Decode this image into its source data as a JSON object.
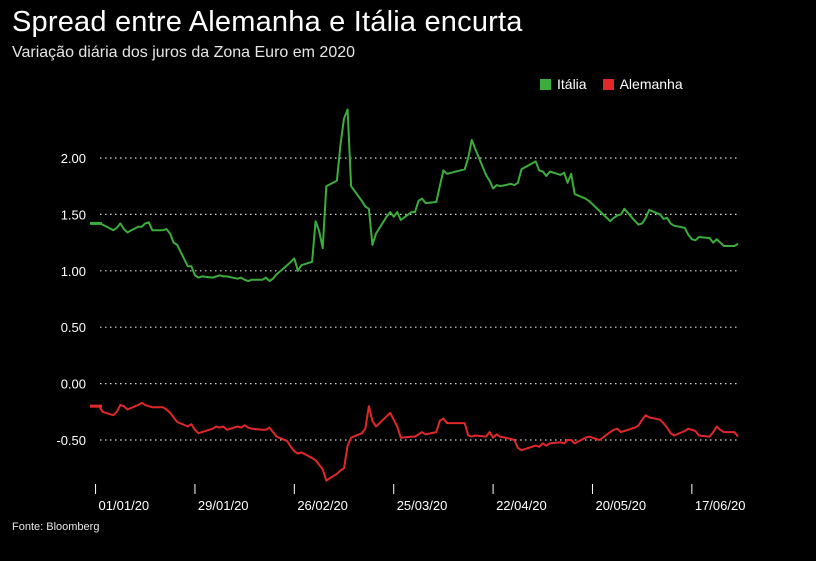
{
  "title": "Spread entre Alemanha e Itália encurta",
  "subtitle": "Variação diária dos juros da Zona Euro em 2020",
  "source": "Fonte: Bloomberg",
  "legend": [
    {
      "label": "Itália",
      "color": "#3cad3c"
    },
    {
      "label": "Alemanha",
      "color": "#e02828"
    }
  ],
  "chart_data": {
    "type": "line",
    "ylim": [
      -0.9,
      2.55
    ],
    "y_ticks": [
      "2.00",
      "1.50",
      "1.00",
      "0.50",
      "0.00",
      "-0.50"
    ],
    "x_ticks": [
      "01/01/20",
      "29/01/20",
      "26/02/20",
      "25/03/20",
      "22/04/20",
      "20/05/20",
      "17/06/20"
    ],
    "x_range": [
      "2019-12-31",
      "2020-06-30"
    ],
    "grid": true,
    "legend_position": "top-right",
    "series": [
      {
        "name": "Itália",
        "color": "#3cad3c",
        "points": [
          [
            "2020-01-02",
            1.42
          ],
          [
            "2020-01-03",
            1.41
          ],
          [
            "2020-01-06",
            1.36
          ],
          [
            "2020-01-07",
            1.38
          ],
          [
            "2020-01-08",
            1.42
          ],
          [
            "2020-01-09",
            1.37
          ],
          [
            "2020-01-10",
            1.34
          ],
          [
            "2020-01-13",
            1.39
          ],
          [
            "2020-01-14",
            1.39
          ],
          [
            "2020-01-15",
            1.42
          ],
          [
            "2020-01-16",
            1.43
          ],
          [
            "2020-01-17",
            1.36
          ],
          [
            "2020-01-20",
            1.36
          ],
          [
            "2020-01-21",
            1.37
          ],
          [
            "2020-01-22",
            1.33
          ],
          [
            "2020-01-23",
            1.25
          ],
          [
            "2020-01-24",
            1.23
          ],
          [
            "2020-01-27",
            1.04
          ],
          [
            "2020-01-28",
            1.04
          ],
          [
            "2020-01-29",
            0.96
          ],
          [
            "2020-01-30",
            0.94
          ],
          [
            "2020-01-31",
            0.95
          ],
          [
            "2020-02-03",
            0.94
          ],
          [
            "2020-02-04",
            0.95
          ],
          [
            "2020-02-05",
            0.96
          ],
          [
            "2020-02-06",
            0.95
          ],
          [
            "2020-02-07",
            0.95
          ],
          [
            "2020-02-10",
            0.93
          ],
          [
            "2020-02-11",
            0.94
          ],
          [
            "2020-02-12",
            0.92
          ],
          [
            "2020-02-13",
            0.91
          ],
          [
            "2020-02-14",
            0.92
          ],
          [
            "2020-02-17",
            0.92
          ],
          [
            "2020-02-18",
            0.94
          ],
          [
            "2020-02-19",
            0.91
          ],
          [
            "2020-02-20",
            0.93
          ],
          [
            "2020-02-21",
            0.97
          ],
          [
            "2020-02-24",
            1.05
          ],
          [
            "2020-02-25",
            1.08
          ],
          [
            "2020-02-26",
            1.11
          ],
          [
            "2020-02-27",
            1.0
          ],
          [
            "2020-02-28",
            1.05
          ],
          [
            "2020-03-02",
            1.08
          ],
          [
            "2020-03-03",
            1.44
          ],
          [
            "2020-03-04",
            1.35
          ],
          [
            "2020-03-05",
            1.2
          ],
          [
            "2020-03-06",
            1.75
          ],
          [
            "2020-03-09",
            1.8
          ],
          [
            "2020-03-10",
            2.12
          ],
          [
            "2020-03-11",
            2.35
          ],
          [
            "2020-03-12",
            2.43
          ],
          [
            "2020-03-13",
            1.75
          ],
          [
            "2020-03-16",
            1.62
          ],
          [
            "2020-03-17",
            1.57
          ],
          [
            "2020-03-18",
            1.55
          ],
          [
            "2020-03-19",
            1.23
          ],
          [
            "2020-03-20",
            1.33
          ],
          [
            "2020-03-23",
            1.48
          ],
          [
            "2020-03-24",
            1.52
          ],
          [
            "2020-03-25",
            1.48
          ],
          [
            "2020-03-26",
            1.52
          ],
          [
            "2020-03-27",
            1.45
          ],
          [
            "2020-03-30",
            1.52
          ],
          [
            "2020-03-31",
            1.52
          ],
          [
            "2020-04-01",
            1.62
          ],
          [
            "2020-04-02",
            1.64
          ],
          [
            "2020-04-03",
            1.6
          ],
          [
            "2020-04-06",
            1.61
          ],
          [
            "2020-04-07",
            1.75
          ],
          [
            "2020-04-08",
            1.89
          ],
          [
            "2020-04-09",
            1.86
          ],
          [
            "2020-04-14",
            1.9
          ],
          [
            "2020-04-15",
            2.0
          ],
          [
            "2020-04-16",
            2.16
          ],
          [
            "2020-04-17",
            2.08
          ],
          [
            "2020-04-20",
            1.85
          ],
          [
            "2020-04-21",
            1.8
          ],
          [
            "2020-04-22",
            1.73
          ],
          [
            "2020-04-23",
            1.76
          ],
          [
            "2020-04-24",
            1.75
          ],
          [
            "2020-04-27",
            1.77
          ],
          [
            "2020-04-28",
            1.76
          ],
          [
            "2020-04-29",
            1.78
          ],
          [
            "2020-04-30",
            1.9
          ],
          [
            "2020-05-04",
            1.97
          ],
          [
            "2020-05-05",
            1.89
          ],
          [
            "2020-05-06",
            1.88
          ],
          [
            "2020-05-07",
            1.84
          ],
          [
            "2020-05-08",
            1.88
          ],
          [
            "2020-05-11",
            1.85
          ],
          [
            "2020-05-12",
            1.87
          ],
          [
            "2020-05-13",
            1.78
          ],
          [
            "2020-05-14",
            1.86
          ],
          [
            "2020-05-15",
            1.68
          ],
          [
            "2020-05-18",
            1.64
          ],
          [
            "2020-05-19",
            1.62
          ],
          [
            "2020-05-20",
            1.59
          ],
          [
            "2020-05-21",
            1.56
          ],
          [
            "2020-05-22",
            1.53
          ],
          [
            "2020-05-25",
            1.44
          ],
          [
            "2020-05-26",
            1.47
          ],
          [
            "2020-05-27",
            1.49
          ],
          [
            "2020-05-28",
            1.5
          ],
          [
            "2020-05-29",
            1.55
          ],
          [
            "2020-06-01",
            1.44
          ],
          [
            "2020-06-02",
            1.41
          ],
          [
            "2020-06-03",
            1.42
          ],
          [
            "2020-06-04",
            1.47
          ],
          [
            "2020-06-05",
            1.54
          ],
          [
            "2020-06-08",
            1.5
          ],
          [
            "2020-06-09",
            1.46
          ],
          [
            "2020-06-10",
            1.47
          ],
          [
            "2020-06-11",
            1.42
          ],
          [
            "2020-06-12",
            1.4
          ],
          [
            "2020-06-15",
            1.38
          ],
          [
            "2020-06-16",
            1.32
          ],
          [
            "2020-06-17",
            1.28
          ],
          [
            "2020-06-18",
            1.27
          ],
          [
            "2020-06-19",
            1.3
          ],
          [
            "2020-06-22",
            1.29
          ],
          [
            "2020-06-23",
            1.25
          ],
          [
            "2020-06-24",
            1.28
          ],
          [
            "2020-06-25",
            1.25
          ],
          [
            "2020-06-26",
            1.22
          ],
          [
            "2020-06-29",
            1.22
          ],
          [
            "2020-06-30",
            1.24
          ]
        ]
      },
      {
        "name": "Alemanha",
        "color": "#e02828",
        "points": [
          [
            "2020-01-02",
            -0.2
          ],
          [
            "2020-01-03",
            -0.25
          ],
          [
            "2020-01-06",
            -0.28
          ],
          [
            "2020-01-07",
            -0.25
          ],
          [
            "2020-01-08",
            -0.19
          ],
          [
            "2020-01-09",
            -0.2
          ],
          [
            "2020-01-10",
            -0.23
          ],
          [
            "2020-01-13",
            -0.19
          ],
          [
            "2020-01-14",
            -0.17
          ],
          [
            "2020-01-15",
            -0.19
          ],
          [
            "2020-01-16",
            -0.2
          ],
          [
            "2020-01-17",
            -0.21
          ],
          [
            "2020-01-20",
            -0.21
          ],
          [
            "2020-01-21",
            -0.23
          ],
          [
            "2020-01-22",
            -0.26
          ],
          [
            "2020-01-23",
            -0.3
          ],
          [
            "2020-01-24",
            -0.34
          ],
          [
            "2020-01-27",
            -0.38
          ],
          [
            "2020-01-28",
            -0.36
          ],
          [
            "2020-01-29",
            -0.41
          ],
          [
            "2020-01-30",
            -0.44
          ],
          [
            "2020-01-31",
            -0.43
          ],
          [
            "2020-02-03",
            -0.4
          ],
          [
            "2020-02-04",
            -0.38
          ],
          [
            "2020-02-05",
            -0.39
          ],
          [
            "2020-02-06",
            -0.38
          ],
          [
            "2020-02-07",
            -0.41
          ],
          [
            "2020-02-10",
            -0.38
          ],
          [
            "2020-02-11",
            -0.39
          ],
          [
            "2020-02-12",
            -0.37
          ],
          [
            "2020-02-13",
            -0.39
          ],
          [
            "2020-02-14",
            -0.4
          ],
          [
            "2020-02-17",
            -0.41
          ],
          [
            "2020-02-18",
            -0.41
          ],
          [
            "2020-02-19",
            -0.39
          ],
          [
            "2020-02-20",
            -0.43
          ],
          [
            "2020-02-21",
            -0.47
          ],
          [
            "2020-02-24",
            -0.51
          ],
          [
            "2020-02-25",
            -0.56
          ],
          [
            "2020-02-26",
            -0.6
          ],
          [
            "2020-02-27",
            -0.62
          ],
          [
            "2020-02-28",
            -0.61
          ],
          [
            "2020-03-02",
            -0.66
          ],
          [
            "2020-03-03",
            -0.68
          ],
          [
            "2020-03-04",
            -0.72
          ],
          [
            "2020-03-05",
            -0.76
          ],
          [
            "2020-03-06",
            -0.86
          ],
          [
            "2020-03-09",
            -0.8
          ],
          [
            "2020-03-10",
            -0.77
          ],
          [
            "2020-03-11",
            -0.75
          ],
          [
            "2020-03-12",
            -0.55
          ],
          [
            "2020-03-13",
            -0.48
          ],
          [
            "2020-03-16",
            -0.44
          ],
          [
            "2020-03-17",
            -0.4
          ],
          [
            "2020-03-18",
            -0.2
          ],
          [
            "2020-03-19",
            -0.33
          ],
          [
            "2020-03-20",
            -0.38
          ],
          [
            "2020-03-23",
            -0.29
          ],
          [
            "2020-03-24",
            -0.26
          ],
          [
            "2020-03-25",
            -0.32
          ],
          [
            "2020-03-26",
            -0.38
          ],
          [
            "2020-03-27",
            -0.48
          ],
          [
            "2020-03-30",
            -0.47
          ],
          [
            "2020-03-31",
            -0.47
          ],
          [
            "2020-04-01",
            -0.45
          ],
          [
            "2020-04-02",
            -0.43
          ],
          [
            "2020-04-03",
            -0.45
          ],
          [
            "2020-04-06",
            -0.43
          ],
          [
            "2020-04-07",
            -0.33
          ],
          [
            "2020-04-08",
            -0.31
          ],
          [
            "2020-04-09",
            -0.35
          ],
          [
            "2020-04-14",
            -0.35
          ],
          [
            "2020-04-15",
            -0.46
          ],
          [
            "2020-04-16",
            -0.47
          ],
          [
            "2020-04-17",
            -0.46
          ],
          [
            "2020-04-20",
            -0.47
          ],
          [
            "2020-04-21",
            -0.43
          ],
          [
            "2020-04-22",
            -0.48
          ],
          [
            "2020-04-23",
            -0.45
          ],
          [
            "2020-04-24",
            -0.47
          ],
          [
            "2020-04-27",
            -0.49
          ],
          [
            "2020-04-28",
            -0.5
          ],
          [
            "2020-04-29",
            -0.57
          ],
          [
            "2020-04-30",
            -0.59
          ],
          [
            "2020-05-04",
            -0.55
          ],
          [
            "2020-05-05",
            -0.56
          ],
          [
            "2020-05-06",
            -0.53
          ],
          [
            "2020-05-07",
            -0.55
          ],
          [
            "2020-05-08",
            -0.53
          ],
          [
            "2020-05-11",
            -0.52
          ],
          [
            "2020-05-12",
            -0.53
          ],
          [
            "2020-05-13",
            -0.5
          ],
          [
            "2020-05-14",
            -0.5
          ],
          [
            "2020-05-15",
            -0.53
          ],
          [
            "2020-05-18",
            -0.48
          ],
          [
            "2020-05-19",
            -0.47
          ],
          [
            "2020-05-20",
            -0.48
          ],
          [
            "2020-05-21",
            -0.49
          ],
          [
            "2020-05-22",
            -0.5
          ],
          [
            "2020-05-25",
            -0.43
          ],
          [
            "2020-05-26",
            -0.41
          ],
          [
            "2020-05-27",
            -0.4
          ],
          [
            "2020-05-28",
            -0.43
          ],
          [
            "2020-05-29",
            -0.42
          ],
          [
            "2020-06-01",
            -0.39
          ],
          [
            "2020-06-02",
            -0.37
          ],
          [
            "2020-06-03",
            -0.32
          ],
          [
            "2020-06-04",
            -0.28
          ],
          [
            "2020-06-05",
            -0.3
          ],
          [
            "2020-06-08",
            -0.32
          ],
          [
            "2020-06-09",
            -0.35
          ],
          [
            "2020-06-10",
            -0.39
          ],
          [
            "2020-06-11",
            -0.44
          ],
          [
            "2020-06-12",
            -0.46
          ],
          [
            "2020-06-15",
            -0.42
          ],
          [
            "2020-06-16",
            -0.4
          ],
          [
            "2020-06-17",
            -0.41
          ],
          [
            "2020-06-18",
            -0.42
          ],
          [
            "2020-06-19",
            -0.46
          ],
          [
            "2020-06-22",
            -0.47
          ],
          [
            "2020-06-23",
            -0.43
          ],
          [
            "2020-06-24",
            -0.38
          ],
          [
            "2020-06-25",
            -0.41
          ],
          [
            "2020-06-26",
            -0.43
          ],
          [
            "2020-06-29",
            -0.43
          ],
          [
            "2020-06-30",
            -0.47
          ]
        ]
      }
    ]
  }
}
